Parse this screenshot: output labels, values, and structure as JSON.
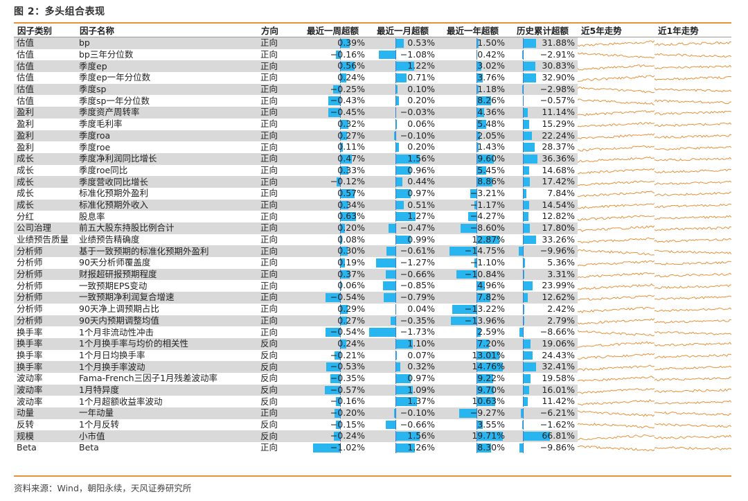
{
  "title": "图 2：多头组合表现",
  "source": "资料来源：Wind，朝阳永续，天风证券研究所",
  "headers": [
    "因子类别",
    "因子名称",
    "方向",
    "最近一周超额",
    "最近一月超额",
    "最近一年超额",
    "历史累计超额",
    "近5年走势",
    "近1年走势"
  ],
  "colors": {
    "rule": "#e69138",
    "bar": "#29b6f0",
    "axis": "#3a7ec9",
    "spark": "#e69138",
    "stripe": "#d9d9d9"
  },
  "rows": [
    {
      "cat": "估值",
      "name": "bp",
      "dir": "正向",
      "w": "0.39%",
      "m": "0.53%",
      "y": "1.50%",
      "h": "31.88%",
      "wv": 0.39,
      "mv": 0.53,
      "yv": 1.5,
      "hv": 31.88
    },
    {
      "cat": "估值",
      "name": "bp三年分位数",
      "dir": "正向",
      "w": "−0.16%",
      "m": "−1.08%",
      "y": "0.42%",
      "h": "−2.91%",
      "wv": -0.16,
      "mv": -1.08,
      "yv": 0.42,
      "hv": -2.91
    },
    {
      "cat": "估值",
      "name": "季度ep",
      "dir": "正向",
      "w": "0.56%",
      "m": "1.22%",
      "y": "3.02%",
      "h": "30.83%",
      "wv": 0.56,
      "mv": 1.22,
      "yv": 3.02,
      "hv": 30.83
    },
    {
      "cat": "估值",
      "name": "季度ep一年分位数",
      "dir": "正向",
      "w": "0.24%",
      "m": "0.71%",
      "y": "3.76%",
      "h": "32.90%",
      "wv": 0.24,
      "mv": 0.71,
      "yv": 3.76,
      "hv": 32.9
    },
    {
      "cat": "估值",
      "name": "季度sp",
      "dir": "正向",
      "w": "−0.25%",
      "m": "0.10%",
      "y": "1.18%",
      "h": "−2.98%",
      "wv": -0.25,
      "mv": 0.1,
      "yv": 1.18,
      "hv": -2.98
    },
    {
      "cat": "估值",
      "name": "季度sp一年分位数",
      "dir": "正向",
      "w": "−0.43%",
      "m": "0.20%",
      "y": "8.26%",
      "h": "−0.57%",
      "wv": -0.43,
      "mv": 0.2,
      "yv": 8.26,
      "hv": -0.57
    },
    {
      "cat": "盈利",
      "name": "季度资产周转率",
      "dir": "正向",
      "w": "−0.45%",
      "m": "−0.03%",
      "y": "4.36%",
      "h": "11.14%",
      "wv": -0.45,
      "mv": -0.03,
      "yv": 4.36,
      "hv": 11.14
    },
    {
      "cat": "盈利",
      "name": "季度毛利率",
      "dir": "正向",
      "w": "0.32%",
      "m": "0.06%",
      "y": "5.48%",
      "h": "15.29%",
      "wv": 0.32,
      "mv": 0.06,
      "yv": 5.48,
      "hv": 15.29
    },
    {
      "cat": "盈利",
      "name": "季度roa",
      "dir": "正向",
      "w": "0.27%",
      "m": "−0.10%",
      "y": "2.05%",
      "h": "22.24%",
      "wv": 0.27,
      "mv": -0.1,
      "yv": 2.05,
      "hv": 22.24
    },
    {
      "cat": "盈利",
      "name": "季度roe",
      "dir": "正向",
      "w": "0.11%",
      "m": "0.20%",
      "y": "1.43%",
      "h": "28.37%",
      "wv": 0.11,
      "mv": 0.2,
      "yv": 1.43,
      "hv": 28.37
    },
    {
      "cat": "成长",
      "name": "季度净利润同比增长",
      "dir": "正向",
      "w": "0.47%",
      "m": "1.56%",
      "y": "9.60%",
      "h": "36.36%",
      "wv": 0.47,
      "mv": 1.56,
      "yv": 9.6,
      "hv": 36.36
    },
    {
      "cat": "成长",
      "name": "季度roe同比",
      "dir": "正向",
      "w": "0.33%",
      "m": "0.96%",
      "y": "5.45%",
      "h": "14.68%",
      "wv": 0.33,
      "mv": 0.96,
      "yv": 5.45,
      "hv": 14.68
    },
    {
      "cat": "成长",
      "name": "季度营收同比增长",
      "dir": "正向",
      "w": "−0.12%",
      "m": "0.44%",
      "y": "8.86%",
      "h": "17.42%",
      "wv": -0.12,
      "mv": 0.44,
      "yv": 8.86,
      "hv": 17.42
    },
    {
      "cat": "成长",
      "name": "标准化预期外盈利",
      "dir": "正向",
      "w": "0.57%",
      "m": "0.97%",
      "y": "−3.21%",
      "h": "7.84%",
      "wv": 0.57,
      "mv": 0.97,
      "yv": -3.21,
      "hv": 7.84
    },
    {
      "cat": "成长",
      "name": "标准化预期外收入",
      "dir": "正向",
      "w": "0.34%",
      "m": "0.51%",
      "y": "−1.17%",
      "h": "14.54%",
      "wv": 0.34,
      "mv": 0.51,
      "yv": -1.17,
      "hv": 14.54
    },
    {
      "cat": "分红",
      "name": "股息率",
      "dir": "正向",
      "w": "0.63%",
      "m": "1.27%",
      "y": "−4.27%",
      "h": "12.82%",
      "wv": 0.63,
      "mv": 1.27,
      "yv": -4.27,
      "hv": 12.82
    },
    {
      "cat": "公司治理",
      "name": "前五大股东持股比例合计",
      "dir": "正向",
      "w": "0.20%",
      "m": "−0.47%",
      "y": "−8.60%",
      "h": "17.80%",
      "wv": 0.2,
      "mv": -0.47,
      "yv": -8.6,
      "hv": 17.8
    },
    {
      "cat": "业绩预告质量",
      "name": "业绩预告精确度",
      "dir": "正向",
      "w": "0.08%",
      "m": "0.99%",
      "y": "12.87%",
      "h": "33.26%",
      "wv": 0.08,
      "mv": 0.99,
      "yv": 12.87,
      "hv": 33.26
    },
    {
      "cat": "分析师",
      "name": "基于一致预期的标准化预期外盈利",
      "dir": "正向",
      "w": "0.30%",
      "m": "−0.61%",
      "y": "−14.75%",
      "h": "−9.96%",
      "wv": 0.3,
      "mv": -0.61,
      "yv": -14.75,
      "hv": -9.96
    },
    {
      "cat": "分析师",
      "name": "90天分析师覆盖度",
      "dir": "正向",
      "w": "0.19%",
      "m": "−1.27%",
      "y": "−1.10%",
      "h": "5.36%",
      "wv": 0.19,
      "mv": -1.27,
      "yv": -1.1,
      "hv": 5.36
    },
    {
      "cat": "分析师",
      "name": "财报超研报预期程度",
      "dir": "正向",
      "w": "0.37%",
      "m": "−0.66%",
      "y": "−10.84%",
      "h": "3.31%",
      "wv": 0.37,
      "mv": -0.66,
      "yv": -10.84,
      "hv": 3.31
    },
    {
      "cat": "分析师",
      "name": "一致预期EPS变动",
      "dir": "正向",
      "w": "0.06%",
      "m": "−0.85%",
      "y": "4.96%",
      "h": "23.99%",
      "wv": 0.06,
      "mv": -0.85,
      "yv": 4.96,
      "hv": 23.99
    },
    {
      "cat": "分析师",
      "name": "一致预期净利润复合增速",
      "dir": "正向",
      "w": "−0.54%",
      "m": "−0.79%",
      "y": "7.82%",
      "h": "12.62%",
      "wv": -0.54,
      "mv": -0.79,
      "yv": 7.82,
      "hv": 12.62
    },
    {
      "cat": "分析师",
      "name": "90天净上调预期占比",
      "dir": "正向",
      "w": "0.29%",
      "m": "0.04%",
      "y": "−13.22%",
      "h": "2.42%",
      "wv": 0.29,
      "mv": 0.04,
      "yv": -13.22,
      "hv": 2.42
    },
    {
      "cat": "分析师",
      "name": "90天内预期调整均值",
      "dir": "正向",
      "w": "0.27%",
      "m": "−0.35%",
      "y": "−13.96%",
      "h": "2.79%",
      "wv": 0.27,
      "mv": -0.35,
      "yv": -13.96,
      "hv": 2.79
    },
    {
      "cat": "换手率",
      "name": "1个月非流动性冲击",
      "dir": "正向",
      "w": "−0.54%",
      "m": "−1.73%",
      "y": "2.59%",
      "h": "−8.66%",
      "wv": -0.54,
      "mv": -1.73,
      "yv": 2.59,
      "hv": -8.66
    },
    {
      "cat": "换手率",
      "name": "1个月换手率与均价的相关性",
      "dir": "反向",
      "w": "0.24%",
      "m": "1.10%",
      "y": "7.20%",
      "h": "19.06%",
      "wv": 0.24,
      "mv": 1.1,
      "yv": 7.2,
      "hv": 19.06
    },
    {
      "cat": "换手率",
      "name": "1个月日均换手率",
      "dir": "反向",
      "w": "−0.21%",
      "m": "0.07%",
      "y": "13.01%",
      "h": "24.43%",
      "wv": -0.21,
      "mv": 0.07,
      "yv": 13.01,
      "hv": 24.43
    },
    {
      "cat": "换手率",
      "name": "1个月换手率波动",
      "dir": "反向",
      "w": "−0.53%",
      "m": "0.32%",
      "y": "14.76%",
      "h": "32.41%",
      "wv": -0.53,
      "mv": 0.32,
      "yv": 14.76,
      "hv": 32.41
    },
    {
      "cat": "波动率",
      "name": "Fama-French三因子1月残差波动率",
      "dir": "反向",
      "w": "−0.35%",
      "m": "0.97%",
      "y": "9.22%",
      "h": "19.58%",
      "wv": -0.35,
      "mv": 0.97,
      "yv": 9.22,
      "hv": 19.58
    },
    {
      "cat": "波动率",
      "name": "1月特异度",
      "dir": "反向",
      "w": "−0.57%",
      "m": "1.09%",
      "y": "9.70%",
      "h": "16.01%",
      "wv": -0.57,
      "mv": 1.09,
      "yv": 9.7,
      "hv": 16.01
    },
    {
      "cat": "波动率",
      "name": "1个月超额收益率波动",
      "dir": "反向",
      "w": "−0.16%",
      "m": "1.37%",
      "y": "10.63%",
      "h": "11.42%",
      "wv": -0.16,
      "mv": 1.37,
      "yv": 10.63,
      "hv": 11.42
    },
    {
      "cat": "动量",
      "name": "一年动量",
      "dir": "正向",
      "w": "−0.20%",
      "m": "−0.10%",
      "y": "−9.27%",
      "h": "−6.21%",
      "wv": -0.2,
      "mv": -0.1,
      "yv": -9.27,
      "hv": -6.21
    },
    {
      "cat": "反转",
      "name": "1个月反转",
      "dir": "反向",
      "w": "−0.15%",
      "m": "−0.66%",
      "y": "3.55%",
      "h": "−1.62%",
      "wv": -0.15,
      "mv": -0.66,
      "yv": 3.55,
      "hv": -1.62
    },
    {
      "cat": "规模",
      "name": "小市值",
      "dir": "反向",
      "w": "−0.24%",
      "m": "1.56%",
      "y": "19.71%",
      "h": "66.81%",
      "wv": -0.24,
      "mv": 1.56,
      "yv": 19.71,
      "hv": 66.81
    },
    {
      "cat": "Beta",
      "name": "Beta",
      "dir": "正向",
      "w": "−1.02%",
      "m": "1.26%",
      "y": "8.30%",
      "h": "−9.86%",
      "wv": -1.02,
      "mv": 1.26,
      "yv": 8.3,
      "hv": -9.86
    }
  ]
}
